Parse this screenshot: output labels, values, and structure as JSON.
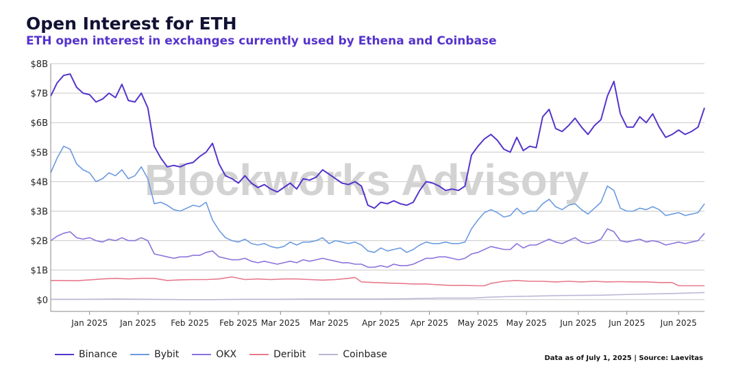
{
  "title": "Open Interest for ETH",
  "subtitle": "ETH open interest in exchanges currently used by Ethena and Coinbase",
  "watermark": "Blockworks Advisory",
  "footer": "Data as of July 1, 2025 | Source: Laevitas",
  "colors": {
    "Binance": "#5533cc",
    "Bybit": "#6a9ae0",
    "OKX": "#8a72dc",
    "Deribit": "#e8788c",
    "Coinbase": "#bdb6d6",
    "grid": "#c8c8c8",
    "watermark": "#d3d3d3"
  },
  "chart_data": {
    "type": "line",
    "title": "Open Interest for ETH",
    "subtitle": "ETH open interest in exchanges currently used by Ethena and Coinbase",
    "ylim": [
      -0.4,
      8
    ],
    "y_ticks": [
      0,
      1,
      2,
      3,
      4,
      5,
      6,
      7,
      8
    ],
    "y_tick_labels": [
      "$0",
      "$1B",
      "$2B",
      "$3B",
      "$4B",
      "$5B",
      "$6B",
      "$7B",
      "$8B"
    ],
    "y_unit": "$B",
    "x_tick_labels": [
      "Jan 2025",
      "Jan 2025",
      "Feb 2025",
      "Feb 2025",
      "Mar 2025",
      "Mar 2025",
      "Apr 2025",
      "Apr 2025",
      "May 2025",
      "May 2025",
      "Jun 2025",
      "Jun 2025",
      "Jun 2025"
    ],
    "x_tick_days": [
      12,
      27,
      43,
      58,
      71,
      86,
      102,
      117,
      132,
      147,
      163,
      178,
      194
    ],
    "x_note": "x values are days elapsed from the left edge of the plot",
    "x_range": [
      0,
      202
    ],
    "grid": true,
    "legend_position": "bottom-left",
    "series": [
      {
        "name": "Binance",
        "x": [
          0,
          2,
          4,
          6,
          8,
          10,
          12,
          14,
          16,
          18,
          20,
          22,
          24,
          26,
          28,
          30,
          32,
          34,
          36,
          38,
          40,
          42,
          44,
          46,
          48,
          50,
          52,
          54,
          56,
          58,
          60,
          62,
          64,
          66,
          68,
          70,
          72,
          74,
          76,
          78,
          80,
          82,
          84,
          86,
          88,
          90,
          92,
          94,
          96,
          98,
          100,
          102,
          104,
          106,
          108,
          110,
          112,
          114,
          116,
          118,
          120,
          122,
          124,
          126,
          128,
          130,
          132,
          134,
          136,
          138,
          140,
          142,
          144,
          146,
          148,
          150,
          152,
          154,
          156,
          158,
          160,
          162,
          164,
          166,
          168,
          170,
          172,
          174,
          176,
          178,
          180,
          182,
          184,
          186,
          188,
          190,
          192,
          194,
          196,
          198,
          200,
          202
        ],
        "values": [
          6.9,
          7.35,
          7.6,
          7.65,
          7.2,
          7.0,
          6.95,
          6.7,
          6.8,
          7.0,
          6.85,
          7.3,
          6.75,
          6.7,
          7.0,
          6.5,
          5.2,
          4.8,
          4.5,
          4.55,
          4.5,
          4.6,
          4.65,
          4.85,
          5.0,
          5.3,
          4.6,
          4.2,
          4.1,
          3.95,
          4.2,
          3.95,
          3.8,
          3.9,
          3.75,
          3.65,
          3.8,
          3.95,
          3.75,
          4.1,
          4.05,
          4.15,
          4.4,
          4.25,
          4.1,
          3.95,
          3.9,
          4.0,
          3.85,
          3.2,
          3.1,
          3.3,
          3.25,
          3.35,
          3.25,
          3.2,
          3.3,
          3.7,
          4.0,
          3.95,
          3.85,
          3.7,
          3.75,
          3.7,
          3.85,
          4.9,
          5.2,
          5.45,
          5.6,
          5.4,
          5.1,
          5.0,
          5.5,
          5.05,
          5.2,
          5.15,
          6.2,
          6.45,
          5.8,
          5.7,
          5.9,
          6.15,
          5.85,
          5.6,
          5.9,
          6.1,
          6.9,
          7.4,
          6.3,
          5.85,
          5.85,
          6.2,
          6.0,
          6.3,
          5.85,
          5.5,
          5.6,
          5.75,
          5.6,
          5.7,
          5.85,
          6.5
        ]
      },
      {
        "name": "Bybit",
        "x": [
          0,
          2,
          4,
          6,
          8,
          10,
          12,
          14,
          16,
          18,
          20,
          22,
          24,
          26,
          28,
          30,
          32,
          34,
          36,
          38,
          40,
          42,
          44,
          46,
          48,
          50,
          52,
          54,
          56,
          58,
          60,
          62,
          64,
          66,
          68,
          70,
          72,
          74,
          76,
          78,
          80,
          82,
          84,
          86,
          88,
          90,
          92,
          94,
          96,
          98,
          100,
          102,
          104,
          106,
          108,
          110,
          112,
          114,
          116,
          118,
          120,
          122,
          124,
          126,
          128,
          130,
          132,
          134,
          136,
          138,
          140,
          142,
          144,
          146,
          148,
          150,
          152,
          154,
          156,
          158,
          160,
          162,
          164,
          166,
          168,
          170,
          172,
          174,
          176,
          178,
          180,
          182,
          184,
          186,
          188,
          190,
          192,
          194,
          196,
          198,
          200,
          202
        ],
        "values": [
          4.3,
          4.8,
          5.2,
          5.1,
          4.6,
          4.4,
          4.3,
          4.0,
          4.1,
          4.3,
          4.2,
          4.4,
          4.1,
          4.2,
          4.5,
          4.1,
          3.25,
          3.3,
          3.2,
          3.05,
          3.0,
          3.1,
          3.2,
          3.15,
          3.3,
          2.7,
          2.35,
          2.1,
          2.0,
          1.95,
          2.05,
          1.9,
          1.85,
          1.9,
          1.8,
          1.75,
          1.8,
          1.95,
          1.85,
          1.95,
          1.95,
          2.0,
          2.1,
          1.9,
          2.0,
          1.95,
          1.9,
          1.95,
          1.85,
          1.65,
          1.6,
          1.75,
          1.65,
          1.7,
          1.75,
          1.6,
          1.7,
          1.85,
          1.95,
          1.9,
          1.9,
          1.95,
          1.9,
          1.9,
          1.95,
          2.4,
          2.7,
          2.95,
          3.05,
          2.95,
          2.8,
          2.85,
          3.1,
          2.9,
          3.0,
          3.0,
          3.25,
          3.4,
          3.15,
          3.05,
          3.2,
          3.25,
          3.05,
          2.9,
          3.1,
          3.3,
          3.85,
          3.7,
          3.1,
          3.0,
          3.0,
          3.1,
          3.05,
          3.15,
          3.05,
          2.85,
          2.9,
          2.95,
          2.85,
          2.9,
          2.95,
          3.25
        ]
      },
      {
        "name": "OKX",
        "x": [
          0,
          2,
          4,
          6,
          8,
          10,
          12,
          14,
          16,
          18,
          20,
          22,
          24,
          26,
          28,
          30,
          32,
          34,
          36,
          38,
          40,
          42,
          44,
          46,
          48,
          50,
          52,
          54,
          56,
          58,
          60,
          62,
          64,
          66,
          68,
          70,
          72,
          74,
          76,
          78,
          80,
          82,
          84,
          86,
          88,
          90,
          92,
          94,
          96,
          98,
          100,
          102,
          104,
          106,
          108,
          110,
          112,
          114,
          116,
          118,
          120,
          122,
          124,
          126,
          128,
          130,
          132,
          134,
          136,
          138,
          140,
          142,
          144,
          146,
          148,
          150,
          152,
          154,
          156,
          158,
          160,
          162,
          164,
          166,
          168,
          170,
          172,
          174,
          176,
          178,
          180,
          182,
          184,
          186,
          188,
          190,
          192,
          194,
          196,
          198,
          200,
          202
        ],
        "values": [
          2.0,
          2.15,
          2.25,
          2.3,
          2.1,
          2.05,
          2.1,
          2.0,
          1.95,
          2.05,
          2.0,
          2.1,
          2.0,
          2.0,
          2.1,
          2.0,
          1.55,
          1.5,
          1.45,
          1.4,
          1.45,
          1.45,
          1.5,
          1.5,
          1.6,
          1.65,
          1.45,
          1.4,
          1.35,
          1.35,
          1.4,
          1.3,
          1.25,
          1.3,
          1.25,
          1.2,
          1.25,
          1.3,
          1.25,
          1.35,
          1.3,
          1.35,
          1.4,
          1.35,
          1.3,
          1.25,
          1.25,
          1.2,
          1.2,
          1.1,
          1.1,
          1.15,
          1.1,
          1.2,
          1.15,
          1.15,
          1.2,
          1.3,
          1.4,
          1.4,
          1.45,
          1.45,
          1.4,
          1.35,
          1.4,
          1.55,
          1.6,
          1.7,
          1.8,
          1.75,
          1.7,
          1.7,
          1.9,
          1.75,
          1.85,
          1.85,
          1.95,
          2.05,
          1.95,
          1.9,
          2.0,
          2.1,
          1.95,
          1.9,
          1.95,
          2.05,
          2.4,
          2.3,
          2.0,
          1.95,
          2.0,
          2.05,
          1.95,
          2.0,
          1.95,
          1.85,
          1.9,
          1.95,
          1.9,
          1.95,
          2.0,
          2.25
        ]
      },
      {
        "name": "Deribit",
        "x": [
          0,
          4,
          8,
          12,
          16,
          20,
          24,
          28,
          32,
          36,
          40,
          44,
          48,
          52,
          56,
          60,
          64,
          68,
          72,
          76,
          80,
          84,
          88,
          92,
          94,
          96,
          100,
          104,
          108,
          112,
          116,
          120,
          124,
          128,
          132,
          134,
          136,
          140,
          144,
          148,
          152,
          156,
          160,
          164,
          168,
          172,
          176,
          180,
          184,
          188,
          192,
          194,
          196,
          200,
          202
        ],
        "values": [
          0.65,
          0.65,
          0.64,
          0.67,
          0.7,
          0.72,
          0.7,
          0.72,
          0.72,
          0.65,
          0.67,
          0.68,
          0.68,
          0.7,
          0.77,
          0.68,
          0.7,
          0.68,
          0.7,
          0.7,
          0.68,
          0.66,
          0.68,
          0.72,
          0.75,
          0.6,
          0.58,
          0.56,
          0.55,
          0.53,
          0.53,
          0.5,
          0.48,
          0.48,
          0.47,
          0.47,
          0.55,
          0.62,
          0.65,
          0.62,
          0.62,
          0.6,
          0.62,
          0.6,
          0.62,
          0.6,
          0.61,
          0.6,
          0.6,
          0.58,
          0.58,
          0.47,
          0.47,
          0.47,
          0.47
        ]
      },
      {
        "name": "Coinbase",
        "x": [
          0,
          10,
          20,
          30,
          40,
          50,
          60,
          70,
          80,
          90,
          100,
          110,
          120,
          130,
          135,
          140,
          150,
          160,
          170,
          180,
          190,
          196,
          202
        ],
        "values": [
          0.01,
          0.01,
          0.02,
          0.01,
          0.0,
          0.0,
          0.01,
          0.01,
          0.02,
          0.02,
          0.02,
          0.03,
          0.05,
          0.05,
          0.08,
          0.1,
          0.12,
          0.14,
          0.15,
          0.18,
          0.2,
          0.22,
          0.24
        ]
      }
    ]
  }
}
